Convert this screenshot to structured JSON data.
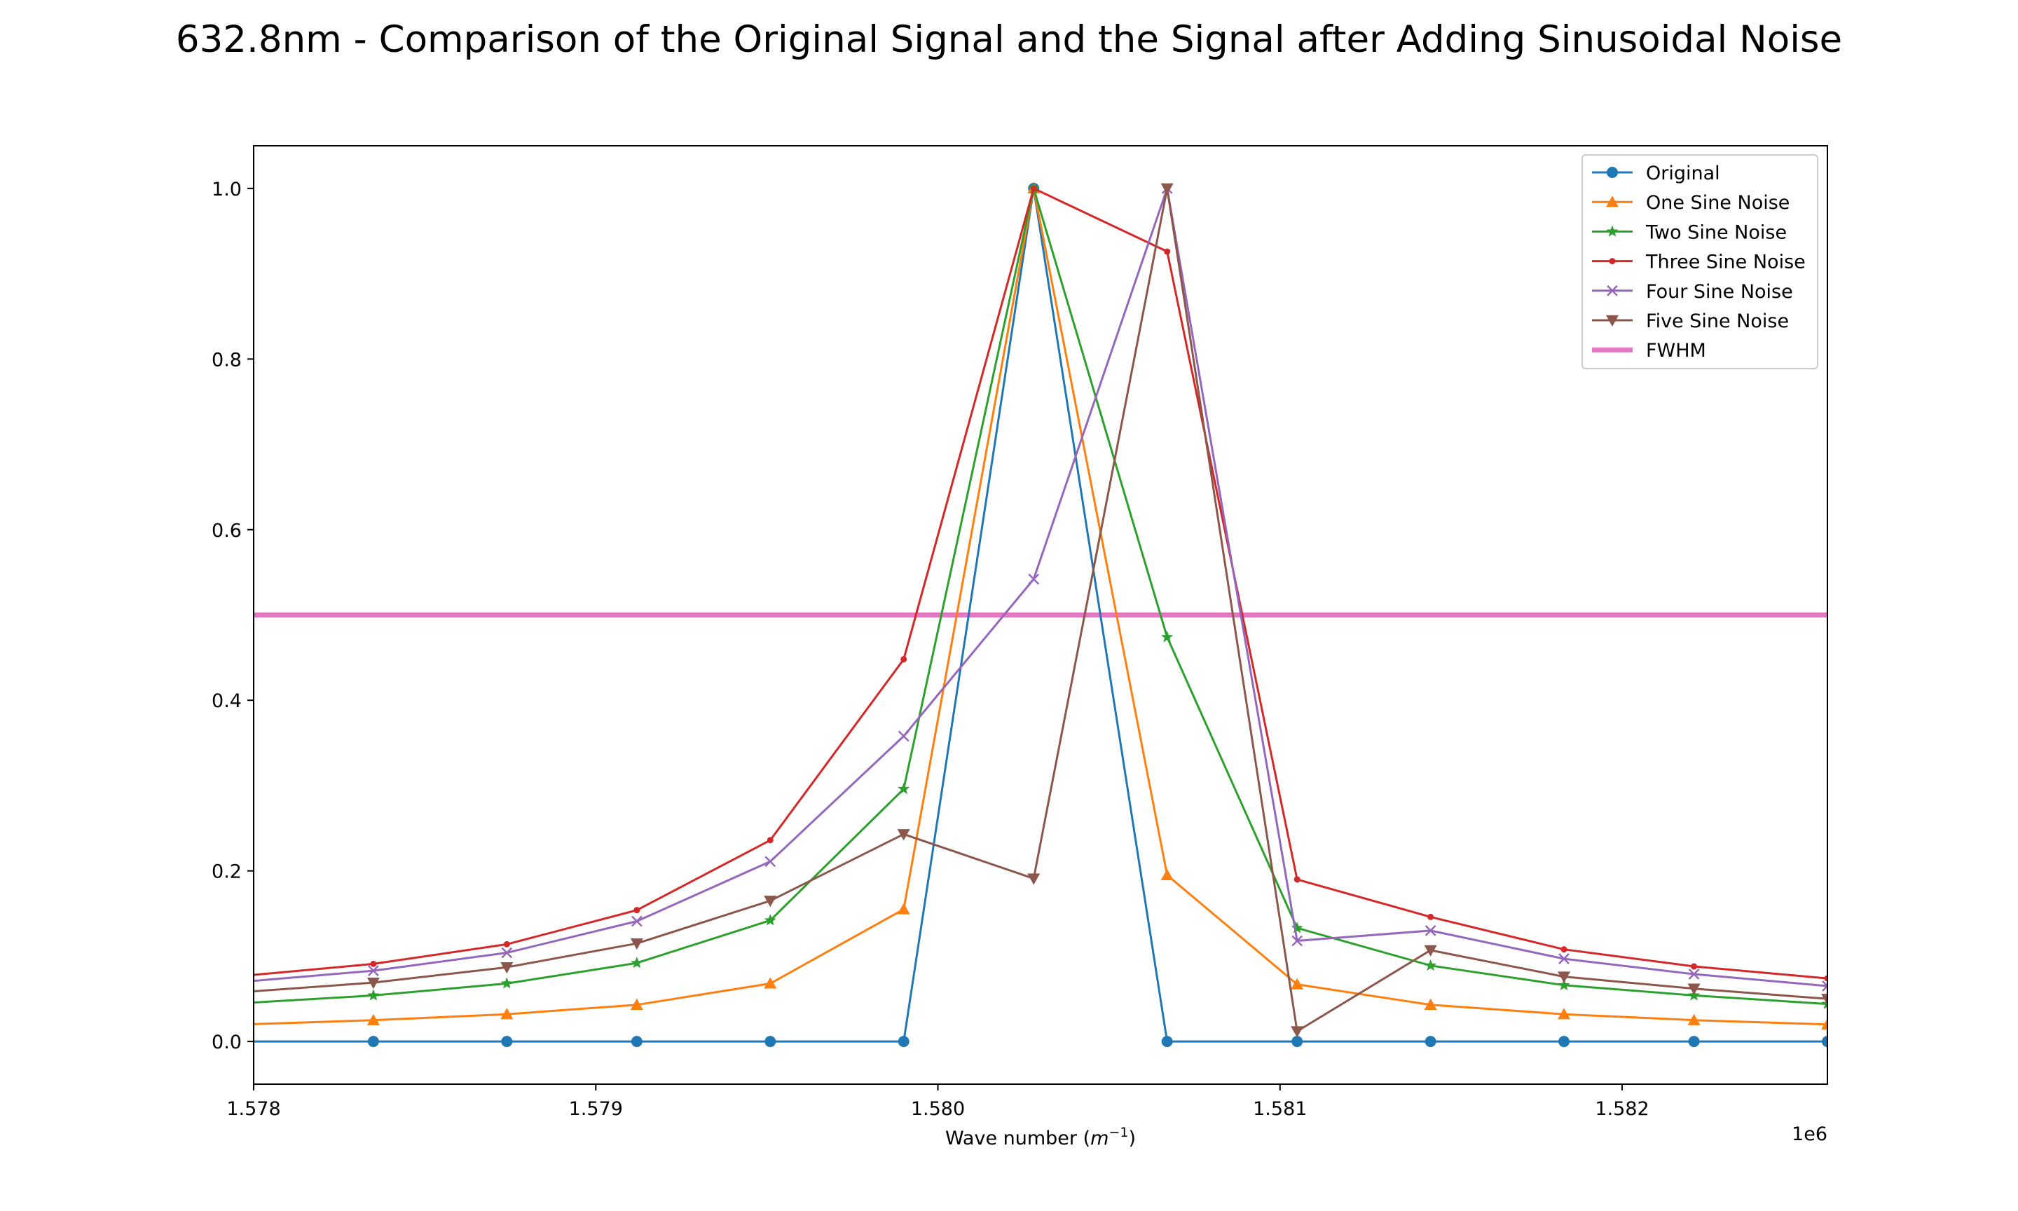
{
  "chart_data": {
    "type": "line",
    "title": "632.8nm - Comparison of the Original Signal and the Signal after Adding Sinusoidal Noise",
    "xlabel": "Wave number",
    "xlabel_unit_base": "m",
    "xlabel_unit_exp": "−1",
    "x_offset_label": "1e6",
    "xlim": [
      1.578,
      1.5826
    ],
    "ylim": [
      -0.05,
      1.05
    ],
    "grid": false,
    "legend_position": "upper right",
    "x_ticks": [
      1.578,
      1.579,
      1.58,
      1.581,
      1.582
    ],
    "x_tick_labels": [
      "1.578",
      "1.579",
      "1.580",
      "1.581",
      "1.582"
    ],
    "y_ticks": [
      0.0,
      0.2,
      0.4,
      0.6,
      0.8,
      1.0
    ],
    "y_tick_labels": [
      "0.0",
      "0.2",
      "0.4",
      "0.6",
      "0.8",
      "1.0"
    ],
    "x": [
      1.57797,
      1.57835,
      1.57874,
      1.57912,
      1.57951,
      1.5799,
      1.58028,
      1.58067,
      1.58105,
      1.58144,
      1.58183,
      1.58221,
      1.5826
    ],
    "series": [
      {
        "name": "Original",
        "color": "#1f77b4",
        "marker": "circle",
        "values": [
          0,
          0,
          0,
          0,
          0,
          0,
          1.0,
          0,
          0,
          0,
          0,
          0,
          0
        ]
      },
      {
        "name": "One Sine Noise",
        "color": "#ff7f0e",
        "marker": "triangle-up",
        "values": [
          0.02,
          0.025,
          0.032,
          0.043,
          0.068,
          0.155,
          1.0,
          0.195,
          0.067,
          0.043,
          0.032,
          0.025,
          0.02
        ]
      },
      {
        "name": "Two Sine Noise",
        "color": "#2ca02c",
        "marker": "star",
        "values": [
          0.045,
          0.054,
          0.068,
          0.092,
          0.142,
          0.296,
          1.0,
          0.474,
          0.133,
          0.089,
          0.066,
          0.054,
          0.044
        ]
      },
      {
        "name": "Three Sine Noise",
        "color": "#d62728",
        "marker": "point",
        "values": [
          0.077,
          0.091,
          0.114,
          0.154,
          0.236,
          0.448,
          1.0,
          0.926,
          0.19,
          0.146,
          0.108,
          0.088,
          0.074
        ]
      },
      {
        "name": "Four Sine Noise",
        "color": "#9467bd",
        "marker": "x",
        "values": [
          0.07,
          0.083,
          0.104,
          0.141,
          0.211,
          0.358,
          0.542,
          1.0,
          0.118,
          0.13,
          0.097,
          0.079,
          0.065
        ]
      },
      {
        "name": "Five Sine Noise",
        "color": "#8c564b",
        "marker": "triangle-down",
        "values": [
          0.058,
          0.069,
          0.087,
          0.115,
          0.165,
          0.243,
          0.191,
          1.0,
          0.012,
          0.107,
          0.076,
          0.062,
          0.05
        ]
      }
    ],
    "hlines": [
      {
        "name": "FWHM",
        "color": "#e377c2",
        "y": 0.5
      }
    ]
  }
}
